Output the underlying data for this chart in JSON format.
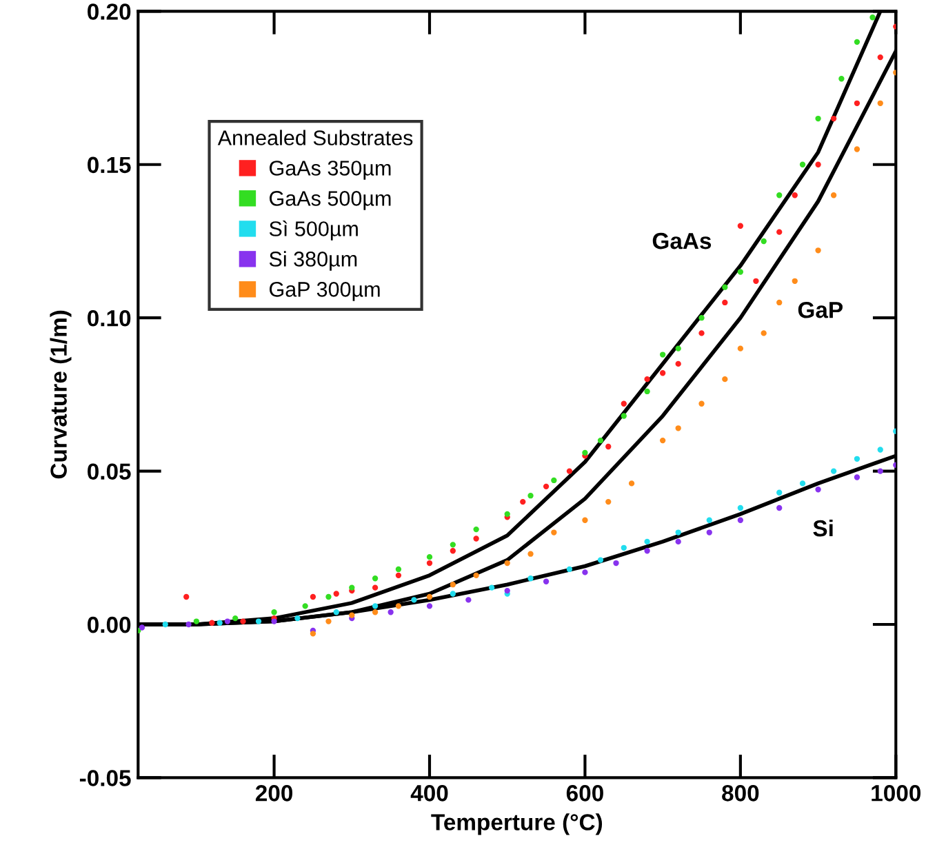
{
  "chart_data": {
    "type": "scatter",
    "xlabel": "Temperture (°C)",
    "ylabel": "Curvature (1/m)",
    "legend_title": "Annealed Substrates",
    "legend": "top left",
    "grid": false,
    "marker": "circle",
    "xlim": [
      25,
      1000
    ],
    "ylim": [
      -0.05,
      0.2
    ],
    "xticks": [
      200,
      400,
      600,
      800,
      1000
    ],
    "yticks": [
      {
        "value": -0.05,
        "label": "-0.05"
      },
      {
        "value": 0,
        "label": "0.00"
      },
      {
        "value": 0.05,
        "label": "0.05"
      },
      {
        "value": 0.1,
        "label": "0.10"
      },
      {
        "value": 0.15,
        "label": "0.15"
      },
      {
        "value": 0.2,
        "label": "0.20"
      }
    ],
    "annotations": [
      "GaAs",
      "GaP",
      "Si"
    ],
    "series": [
      {
        "name": "GaAs 350µm",
        "color": "#ff2020",
        "x": [
          87,
          120,
          160,
          200,
          250,
          280,
          300,
          330,
          360,
          400,
          430,
          460,
          500,
          520,
          550,
          580,
          600,
          630,
          650,
          680,
          700,
          720,
          750,
          780,
          800,
          820,
          850,
          870,
          900,
          920,
          950,
          980,
          1000
        ],
        "values": [
          0.009,
          0.0005,
          0.001,
          0.002,
          0.009,
          0.01,
          0.011,
          0.012,
          0.016,
          0.02,
          0.024,
          0.028,
          0.035,
          0.04,
          0.045,
          0.05,
          0.055,
          0.058,
          0.072,
          0.08,
          0.082,
          0.085,
          0.095,
          0.105,
          0.13,
          0.112,
          0.128,
          0.14,
          0.15,
          0.165,
          0.17,
          0.185,
          0.195
        ]
      },
      {
        "name": "GaAs 500µm",
        "color": "#33dd22",
        "x": [
          25,
          100,
          150,
          200,
          240,
          270,
          300,
          330,
          360,
          400,
          430,
          460,
          500,
          530,
          560,
          600,
          620,
          650,
          680,
          700,
          720,
          750,
          780,
          800,
          830,
          850,
          880,
          900,
          930,
          950,
          970
        ],
        "values": [
          -0.002,
          0.001,
          0.002,
          0.004,
          0.006,
          0.009,
          0.012,
          0.015,
          0.018,
          0.022,
          0.026,
          0.031,
          0.036,
          0.042,
          0.047,
          0.056,
          0.06,
          0.068,
          0.076,
          0.088,
          0.09,
          0.1,
          0.11,
          0.115,
          0.125,
          0.14,
          0.15,
          0.165,
          0.178,
          0.19,
          0.198
        ]
      },
      {
        "name": "Sì 500µm",
        "color": "#22ddee",
        "x": [
          60,
          130,
          180,
          230,
          280,
          330,
          380,
          430,
          480,
          500,
          530,
          580,
          620,
          650,
          680,
          720,
          760,
          800,
          850,
          880,
          920,
          950,
          980,
          1000
        ],
        "values": [
          0.0,
          0.0005,
          0.001,
          0.002,
          0.004,
          0.006,
          0.008,
          0.01,
          0.012,
          0.01,
          0.015,
          0.018,
          0.021,
          0.025,
          0.027,
          0.03,
          0.034,
          0.038,
          0.043,
          0.046,
          0.05,
          0.054,
          0.057,
          0.063
        ]
      },
      {
        "name": "Si 380µm",
        "color": "#8833ee",
        "x": [
          30,
          90,
          140,
          200,
          250,
          300,
          350,
          400,
          450,
          500,
          550,
          600,
          640,
          680,
          720,
          760,
          800,
          850,
          900,
          950,
          980,
          1000
        ],
        "values": [
          -0.001,
          0.0,
          0.001,
          0.001,
          -0.002,
          0.002,
          0.004,
          0.006,
          0.008,
          0.011,
          0.014,
          0.017,
          0.02,
          0.024,
          0.027,
          0.03,
          0.034,
          0.038,
          0.044,
          0.048,
          0.05,
          0.052
        ]
      },
      {
        "name": "GaP 300µm",
        "color": "#ff8c1a",
        "x": [
          250,
          270,
          300,
          330,
          360,
          400,
          430,
          460,
          500,
          530,
          560,
          600,
          630,
          660,
          700,
          720,
          750,
          780,
          800,
          830,
          850,
          870,
          900,
          920,
          950,
          980,
          1000
        ],
        "values": [
          -0.003,
          0.001,
          0.003,
          0.004,
          0.006,
          0.009,
          0.013,
          0.016,
          0.02,
          0.023,
          0.03,
          0.034,
          0.04,
          0.046,
          0.06,
          0.064,
          0.072,
          0.08,
          0.09,
          0.095,
          0.105,
          0.112,
          0.122,
          0.14,
          0.155,
          0.17,
          0.18
        ]
      },
      {
        "type": "line",
        "marker": "none",
        "color": "#000000",
        "x": [
          25,
          100,
          200,
          300,
          400,
          500,
          600,
          700,
          800,
          900,
          980
        ],
        "values": [
          0.0,
          0.0,
          0.002,
          0.007,
          0.016,
          0.029,
          0.053,
          0.085,
          0.117,
          0.154,
          0.2
        ]
      },
      {
        "type": "line",
        "marker": "none",
        "color": "#000000",
        "x": [
          25,
          100,
          200,
          300,
          400,
          500,
          600,
          700,
          800,
          900,
          1000
        ],
        "values": [
          0.0,
          0.0,
          0.001,
          0.004,
          0.01,
          0.021,
          0.041,
          0.068,
          0.1,
          0.138,
          0.187
        ]
      },
      {
        "type": "line",
        "marker": "none",
        "color": "#000000",
        "x": [
          25,
          100,
          200,
          300,
          400,
          500,
          600,
          700,
          800,
          900,
          1000
        ],
        "values": [
          0.0,
          0.0,
          0.001,
          0.004,
          0.008,
          0.013,
          0.019,
          0.027,
          0.036,
          0.046,
          0.055
        ]
      }
    ]
  }
}
